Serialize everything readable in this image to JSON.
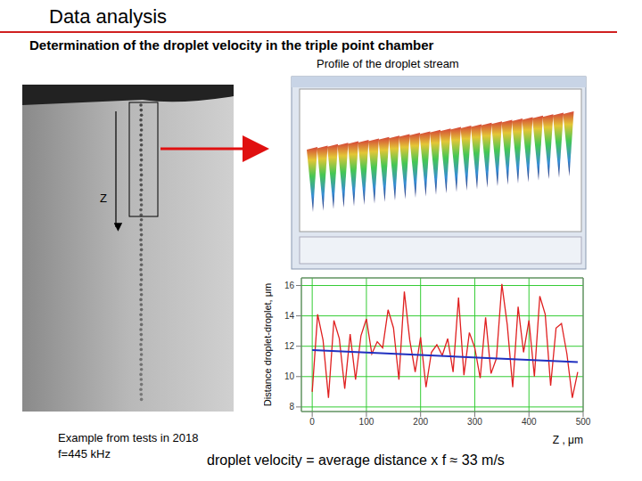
{
  "title": "Data analysis",
  "subtitle": "Determination of the droplet velocity in the triple point chamber",
  "panel_title": "Profile of the droplet stream",
  "image_axis_label": "Z",
  "notes": [
    "Example from tests in 2018",
    "f=445 kHz"
  ],
  "formula": "droplet velocity = average distance x f ≈ 33 m/s",
  "chart_data": {
    "type": "line",
    "x_label": "Z , μm",
    "y_label": "Distance droplet-droplet, μm",
    "xlim": [
      -20,
      500
    ],
    "xticks": [
      0,
      100,
      200,
      300,
      400,
      500
    ],
    "ylim": [
      7.7,
      16.5
    ],
    "yticks": [
      8,
      10,
      12,
      14,
      16
    ],
    "grid": true,
    "series": [
      {
        "color": "#e02020",
        "x": [
          0,
          10,
          20,
          30,
          40,
          50,
          60,
          70,
          80,
          90,
          100,
          110,
          120,
          130,
          140,
          150,
          160,
          170,
          180,
          190,
          200,
          210,
          220,
          230,
          240,
          250,
          260,
          270,
          280,
          290,
          300,
          310,
          320,
          330,
          340,
          350,
          360,
          370,
          380,
          390,
          400,
          410,
          420,
          430,
          440,
          450,
          460,
          470,
          480,
          490
        ],
        "values": [
          9,
          14.1,
          12.4,
          8.6,
          13.7,
          12.5,
          9.2,
          12.8,
          9.8,
          12.7,
          13.8,
          11.5,
          12.3,
          11.9,
          14.4,
          13.2,
          9.8,
          15.6,
          12.4,
          10.3,
          12.6,
          9.3,
          11.6,
          12.1,
          11.4,
          12.5,
          10.3,
          15.2,
          10.1,
          12.9,
          11.9,
          9.9,
          13.9,
          10.2,
          11.2,
          16.1,
          13.4,
          9.3,
          14.6,
          11.6,
          13.7,
          10,
          15.3,
          14.1,
          9.4,
          13.2,
          13.5,
          11.5,
          8.6,
          10.3
        ]
      },
      {
        "color": "#2030c0",
        "x": [
          0,
          490
        ],
        "values": [
          11.75,
          10.95
        ]
      }
    ]
  }
}
